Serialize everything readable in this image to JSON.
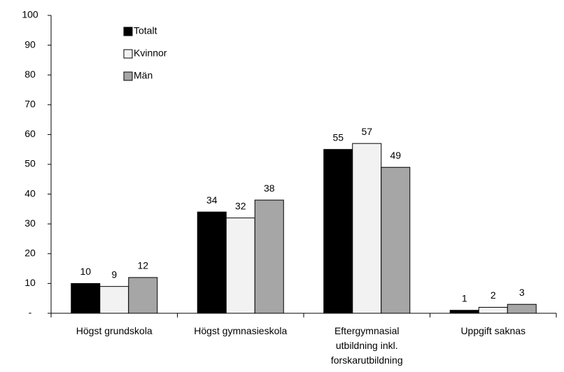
{
  "chart_data": {
    "type": "bar",
    "categories": [
      [
        "Högst grundskola"
      ],
      [
        "Högst gymnasieskola"
      ],
      [
        "Eftergymnasial",
        "utbildning inkl.",
        "forskarutbildning"
      ],
      [
        "Uppgift saknas"
      ]
    ],
    "series": [
      {
        "name": "Totalt",
        "color": "#000000",
        "values": [
          10,
          34,
          55,
          1
        ]
      },
      {
        "name": "Kvinnor",
        "color": "#f2f2f2",
        "values": [
          9,
          32,
          57,
          2
        ]
      },
      {
        "name": "Män",
        "color": "#a6a6a6",
        "values": [
          12,
          38,
          49,
          3
        ]
      }
    ],
    "ylim": [
      0,
      100
    ],
    "yticks": [
      {
        "value": 0,
        "label": "-"
      },
      10,
      20,
      30,
      40,
      50,
      60,
      70,
      80,
      90,
      100
    ],
    "grid": false,
    "legend": "upper left"
  }
}
